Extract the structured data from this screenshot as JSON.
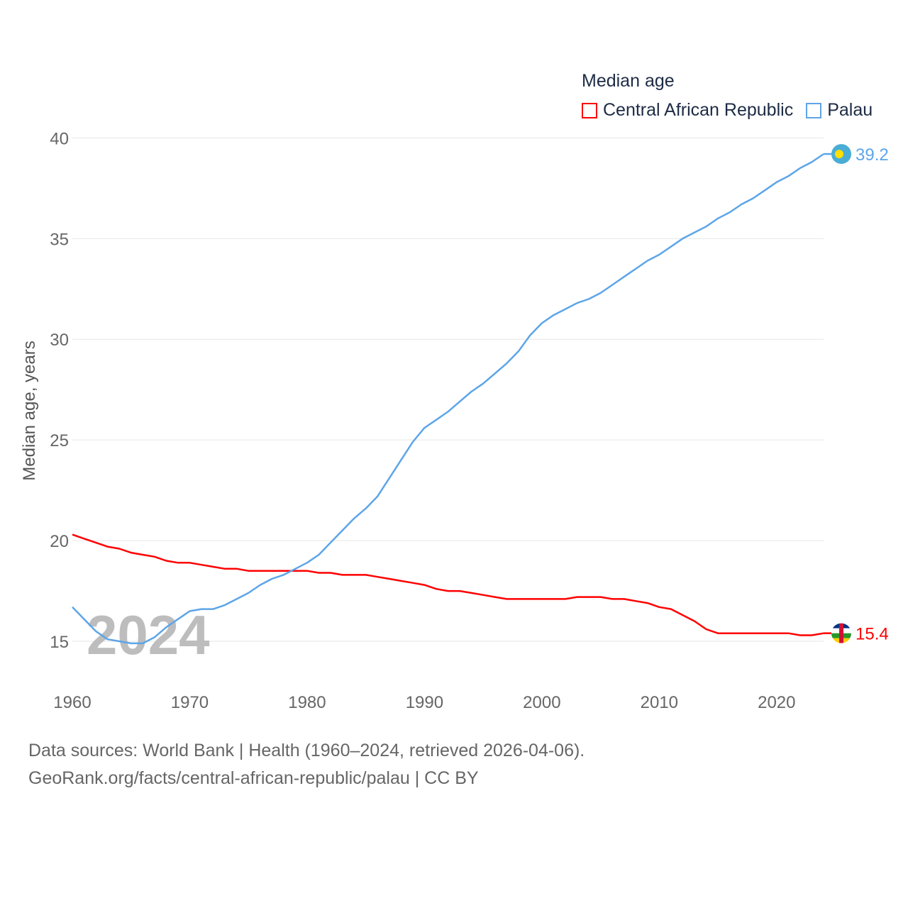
{
  "legend": {
    "title": "Median age",
    "items": [
      {
        "name": "Central African Republic",
        "color": "#ff0000"
      },
      {
        "name": "Palau",
        "color": "#5da5e8"
      }
    ]
  },
  "chart_data": {
    "type": "line",
    "ylabel": "Median age, years",
    "xlabel": "",
    "ylim": [
      12.5,
      41
    ],
    "xlim": [
      1960,
      2024
    ],
    "yticks": [
      15,
      20,
      25,
      30,
      35,
      40
    ],
    "xticks": [
      1960,
      1970,
      1980,
      1990,
      2000,
      2010,
      2020
    ],
    "grid": true,
    "year_watermark": "2024",
    "x": [
      1960,
      1961,
      1962,
      1963,
      1964,
      1965,
      1966,
      1967,
      1968,
      1969,
      1970,
      1971,
      1972,
      1973,
      1974,
      1975,
      1976,
      1977,
      1978,
      1979,
      1980,
      1981,
      1982,
      1983,
      1984,
      1985,
      1986,
      1987,
      1988,
      1989,
      1990,
      1991,
      1992,
      1993,
      1994,
      1995,
      1996,
      1997,
      1998,
      1999,
      2000,
      2001,
      2002,
      2003,
      2004,
      2005,
      2006,
      2007,
      2008,
      2009,
      2010,
      2011,
      2012,
      2013,
      2014,
      2015,
      2016,
      2017,
      2018,
      2019,
      2020,
      2021,
      2022,
      2023,
      2024
    ],
    "series": [
      {
        "name": "Central African Republic",
        "color": "#ff0000",
        "end_label": "15.4",
        "values": [
          20.3,
          20.1,
          19.9,
          19.7,
          19.6,
          19.4,
          19.3,
          19.2,
          19.0,
          18.9,
          18.9,
          18.8,
          18.7,
          18.6,
          18.6,
          18.5,
          18.5,
          18.5,
          18.5,
          18.5,
          18.5,
          18.4,
          18.4,
          18.3,
          18.3,
          18.3,
          18.2,
          18.1,
          18.0,
          17.9,
          17.8,
          17.6,
          17.5,
          17.5,
          17.4,
          17.3,
          17.2,
          17.1,
          17.1,
          17.1,
          17.1,
          17.1,
          17.1,
          17.2,
          17.2,
          17.2,
          17.1,
          17.1,
          17.0,
          16.9,
          16.7,
          16.6,
          16.3,
          16.0,
          15.6,
          15.4,
          15.4,
          15.4,
          15.4,
          15.4,
          15.4,
          15.4,
          15.3,
          15.3,
          15.4
        ]
      },
      {
        "name": "Palau",
        "color": "#5da5e8",
        "end_label": "39.2",
        "values": [
          16.7,
          16.1,
          15.5,
          15.1,
          15.0,
          14.9,
          14.9,
          15.2,
          15.7,
          16.1,
          16.5,
          16.6,
          16.6,
          16.8,
          17.1,
          17.4,
          17.8,
          18.1,
          18.3,
          18.6,
          18.9,
          19.3,
          19.9,
          20.5,
          21.1,
          21.6,
          22.2,
          23.1,
          24.0,
          24.9,
          25.6,
          26.0,
          26.4,
          26.9,
          27.4,
          27.8,
          28.3,
          28.8,
          29.4,
          30.2,
          30.8,
          31.2,
          31.5,
          31.8,
          32.0,
          32.3,
          32.7,
          33.1,
          33.5,
          33.9,
          34.2,
          34.6,
          35.0,
          35.3,
          35.6,
          36.0,
          36.3,
          36.7,
          37.0,
          37.4,
          37.8,
          38.1,
          38.5,
          38.8,
          39.2
        ]
      }
    ]
  },
  "source": {
    "line1": "Data sources: World Bank | Health (1960–2024, retrieved 2026-04-06).",
    "line2": "GeoRank.org/facts/central-african-republic/palau | CC BY"
  }
}
